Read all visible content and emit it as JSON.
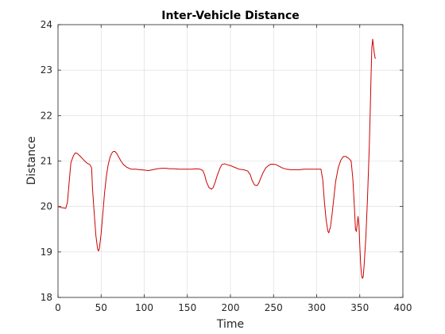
{
  "chart_data": {
    "type": "line",
    "title": "Inter-Vehicle Distance",
    "xlabel": "Time",
    "ylabel": "Distance",
    "xlim": [
      0,
      400
    ],
    "ylim": [
      18,
      24
    ],
    "grid": true,
    "legend": "none",
    "xticks": [
      "0",
      "50",
      "100",
      "150",
      "200",
      "250",
      "300",
      "350",
      "400"
    ],
    "yticks": [
      "18",
      "19",
      "20",
      "21",
      "22",
      "23",
      "24"
    ],
    "colors": {
      "series": "#cc0000",
      "grid": "#d9d9d9",
      "axis": "#262626"
    },
    "series": [
      {
        "x": [
          0,
          3,
          6,
          9,
          11,
          13,
          15,
          18,
          20,
          22,
          25,
          28,
          31,
          34,
          37,
          39,
          40,
          42,
          44,
          46,
          47,
          48,
          50,
          52,
          54,
          56,
          58,
          60,
          62,
          64,
          66,
          68,
          70,
          73,
          76,
          80,
          85,
          90,
          95,
          100,
          105,
          110,
          115,
          120,
          125,
          130,
          135,
          140,
          145,
          150,
          155,
          160,
          165,
          168,
          170,
          172,
          175,
          178,
          180,
          182,
          185,
          188,
          190,
          193,
          196,
          200,
          205,
          210,
          215,
          220,
          223,
          225,
          228,
          231,
          233,
          235,
          238,
          241,
          244,
          247,
          250,
          253,
          256,
          260,
          265,
          270,
          275,
          280,
          285,
          290,
          295,
          300,
          305,
          307,
          309,
          311,
          313,
          314,
          316,
          318,
          320,
          322,
          325,
          328,
          331,
          334,
          337,
          340,
          342,
          344,
          345,
          346,
          347,
          348,
          349,
          350,
          351,
          352,
          353,
          354,
          355,
          357,
          359,
          361,
          362,
          363,
          364,
          365,
          366,
          367,
          368
        ],
        "y": [
          20.0,
          19.98,
          19.97,
          19.96,
          20.1,
          20.55,
          20.97,
          21.12,
          21.18,
          21.17,
          21.12,
          21.06,
          21.0,
          20.95,
          20.92,
          20.85,
          20.4,
          19.85,
          19.35,
          19.06,
          19.02,
          19.08,
          19.4,
          19.85,
          20.3,
          20.65,
          20.9,
          21.06,
          21.16,
          21.21,
          21.21,
          21.17,
          21.1,
          21.0,
          20.92,
          20.86,
          20.82,
          20.82,
          20.81,
          20.8,
          20.79,
          20.81,
          20.83,
          20.84,
          20.84,
          20.83,
          20.83,
          20.82,
          20.82,
          20.82,
          20.82,
          20.83,
          20.82,
          20.79,
          20.7,
          20.55,
          20.42,
          20.38,
          20.42,
          20.52,
          20.7,
          20.85,
          20.92,
          20.94,
          20.92,
          20.9,
          20.86,
          20.82,
          20.81,
          20.78,
          20.7,
          20.58,
          20.47,
          20.46,
          20.52,
          20.62,
          20.75,
          20.85,
          20.9,
          20.93,
          20.93,
          20.92,
          20.89,
          20.85,
          20.82,
          20.81,
          20.81,
          20.81,
          20.82,
          20.82,
          20.82,
          20.82,
          20.82,
          20.6,
          20.1,
          19.7,
          19.46,
          19.42,
          19.55,
          19.85,
          20.2,
          20.55,
          20.85,
          21.02,
          21.1,
          21.1,
          21.06,
          21.0,
          20.6,
          19.9,
          19.5,
          19.45,
          19.6,
          19.78,
          19.6,
          19.15,
          18.75,
          18.5,
          18.42,
          18.45,
          18.7,
          19.3,
          20.2,
          21.3,
          22.0,
          22.8,
          23.5,
          23.68,
          23.5,
          23.35,
          23.25
        ]
      }
    ]
  }
}
